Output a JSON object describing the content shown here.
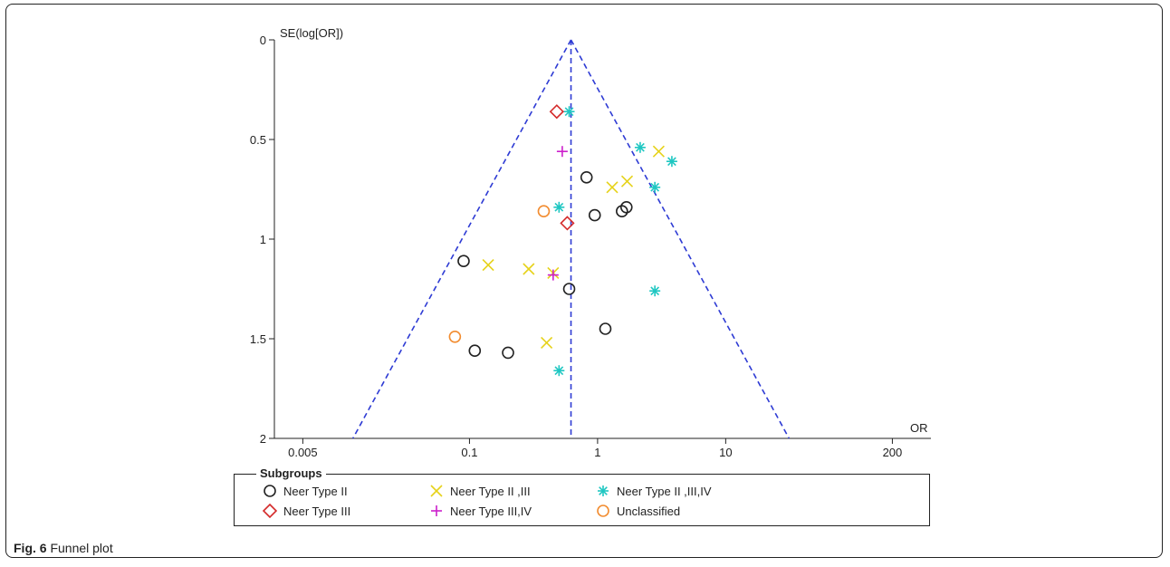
{
  "caption": {
    "label": "Fig. 6",
    "text": "Funnel plot"
  },
  "chart_data": {
    "type": "scatter",
    "subtype": "funnel",
    "ylabel": "SE(log[OR])",
    "xlabel": "OR",
    "x_scale": "log",
    "x_ticks": [
      "0.005",
      "0.1",
      "1",
      "10",
      "200"
    ],
    "y_ticks": [
      "0",
      "0.5",
      "1",
      "1.5",
      "2"
    ],
    "ylim": [
      0,
      2
    ],
    "y_inverted": true,
    "xlim": [
      0.003,
      400
    ],
    "pooled_or": 0.62,
    "funnel_line_color": "#2e3bd4",
    "legend": {
      "title": "Subgroups",
      "placement": "bottom",
      "items": [
        "Neer Type II",
        "Neer Type II ,III",
        "Neer Type II ,III,IV",
        "Neer Type III",
        "Neer Type III,IV",
        "Unclassified"
      ]
    },
    "series": [
      {
        "name": "Neer Type II",
        "marker": "circle",
        "color": "#222222",
        "points": [
          [
            0.82,
            0.69
          ],
          [
            0.95,
            0.88
          ],
          [
            1.55,
            0.86
          ],
          [
            1.68,
            0.84
          ],
          [
            0.09,
            1.11
          ],
          [
            0.6,
            1.25
          ],
          [
            1.15,
            1.45
          ],
          [
            0.11,
            1.56
          ],
          [
            0.2,
            1.57
          ]
        ]
      },
      {
        "name": "Neer Type II ,III",
        "marker": "x",
        "color": "#e6d21a",
        "points": [
          [
            3.0,
            0.56
          ],
          [
            1.7,
            0.71
          ],
          [
            1.3,
            0.74
          ],
          [
            0.14,
            1.13
          ],
          [
            0.29,
            1.15
          ],
          [
            0.45,
            1.17
          ],
          [
            0.4,
            1.52
          ]
        ]
      },
      {
        "name": "Neer Type II ,III,IV",
        "marker": "asterisk",
        "color": "#1fc7c2",
        "points": [
          [
            0.6,
            0.36
          ],
          [
            2.15,
            0.54
          ],
          [
            3.8,
            0.61
          ],
          [
            2.8,
            0.74
          ],
          [
            0.5,
            0.84
          ],
          [
            2.8,
            1.26
          ],
          [
            0.5,
            1.66
          ]
        ]
      },
      {
        "name": "Neer Type III",
        "marker": "diamond",
        "color": "#d42a2a",
        "points": [
          [
            0.48,
            0.36
          ],
          [
            0.58,
            0.92
          ]
        ]
      },
      {
        "name": "Neer Type III,IV",
        "marker": "plus",
        "color": "#cc1fcc",
        "points": [
          [
            0.53,
            0.56
          ],
          [
            0.45,
            1.18
          ]
        ]
      },
      {
        "name": "Unclassified",
        "marker": "circle",
        "color": "#f28c30",
        "points": [
          [
            0.38,
            0.86
          ],
          [
            0.077,
            1.49
          ]
        ]
      }
    ]
  }
}
